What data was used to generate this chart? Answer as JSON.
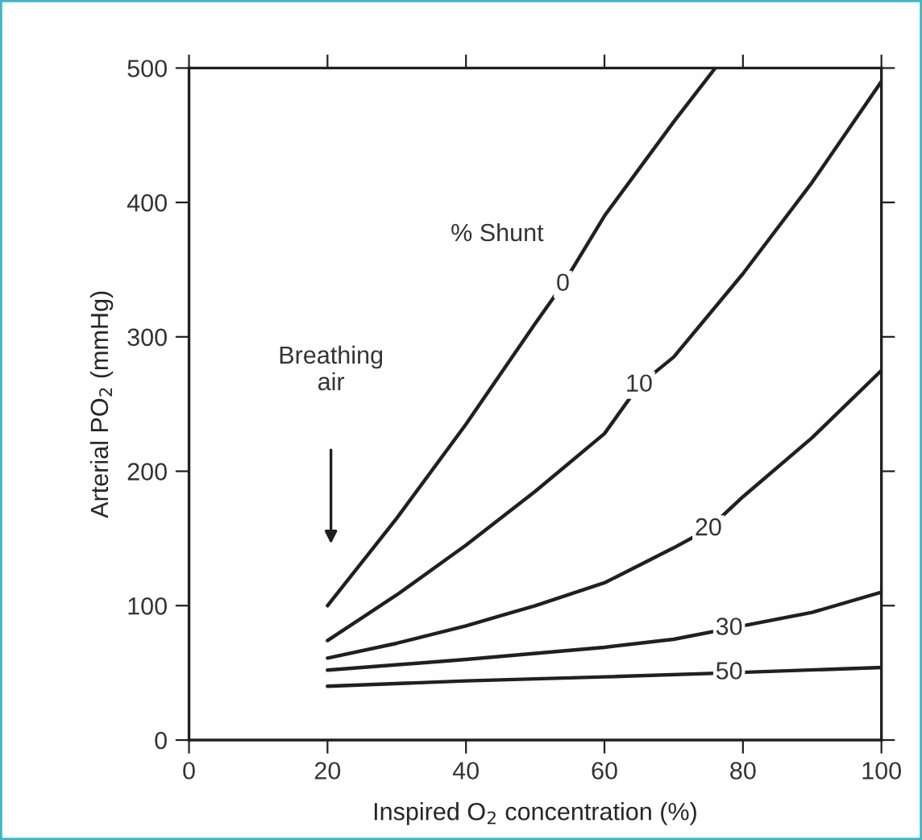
{
  "chart_data": {
    "type": "line",
    "xlabel": "Inspired O$_{2}$ concentration (%)",
    "ylabel": "Arterial PO$_{2}$ (mmHg)",
    "xlim": [
      0,
      100
    ],
    "xticks": [
      0,
      20,
      40,
      60,
      80,
      100
    ],
    "ylim": [
      0,
      500
    ],
    "yticks": [
      0,
      100,
      200,
      300,
      400,
      500
    ],
    "grid": false,
    "marker": "none",
    "line_style": "solid",
    "series": [
      {
        "color": "#231f20",
        "x": [
          20,
          30,
          40,
          50,
          54,
          60,
          70,
          76
        ],
        "values": [
          100,
          165,
          235,
          310,
          339,
          390,
          460,
          500
        ]
      },
      {
        "color": "#231f20",
        "x": [
          20,
          30,
          40,
          50,
          60,
          65,
          70,
          80,
          90,
          100
        ],
        "values": [
          74,
          108,
          145,
          185,
          228,
          264,
          285,
          347,
          415,
          490
        ]
      },
      {
        "color": "#231f20",
        "x": [
          20,
          30,
          40,
          50,
          60,
          70,
          75,
          80,
          90,
          100
        ],
        "values": [
          61,
          72,
          85,
          100,
          117,
          143,
          157,
          181,
          225,
          275
        ]
      },
      {
        "color": "#231f20",
        "x": [
          20,
          40,
          60,
          70,
          78,
          90,
          100
        ],
        "values": [
          52,
          60,
          69,
          75,
          83,
          95,
          110
        ]
      },
      {
        "color": "#231f20",
        "x": [
          20,
          40,
          60,
          78,
          100
        ],
        "values": [
          40,
          44,
          47,
          50,
          54
        ]
      }
    ],
    "annotations": [
      "% Shunt",
      {
        "text": "0",
        "x": 54,
        "y": 339
      },
      {
        "text": "10",
        "x": 65,
        "y": 264
      },
      {
        "text": "20",
        "x": 75,
        "y": 157
      },
      {
        "text": "30",
        "x": 78,
        "y": 83
      },
      {
        "text": "50",
        "x": 78,
        "y": 50
      },
      "Breathing\nair"
    ]
  }
}
